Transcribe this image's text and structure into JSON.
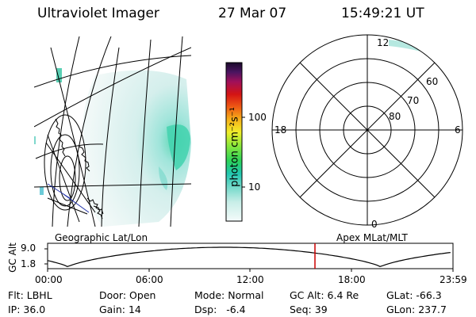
{
  "header": {
    "instrument": "Ultraviolet Imager",
    "date": "27 Mar 07",
    "time": "15:49:21 UT"
  },
  "colorbar": {
    "unit_label": "photon cm⁻²s⁻¹",
    "ticks": [
      "100",
      "10"
    ]
  },
  "geo_panel": {
    "label": "Geographic Lat/Lon"
  },
  "polar_panel": {
    "label": "Apex MLat/MLT",
    "mlt_labels": {
      "top": "12",
      "left": "18",
      "right": "6",
      "bottom": "0"
    },
    "lat_labels": [
      "60",
      "70",
      "80"
    ]
  },
  "timeline": {
    "ylabel": "GC Alt",
    "y_ticks": [
      "9.0",
      "1.8"
    ],
    "x_ticks": [
      "00:00",
      "06:00",
      "12:00",
      "18:00",
      "23:59"
    ],
    "marker_time": "15:49"
  },
  "status": {
    "flt": {
      "label": "Flt:",
      "value": "LBHL"
    },
    "ip": {
      "label": "IP:",
      "value": "36.0"
    },
    "door": {
      "label": "Door:",
      "value": "Open"
    },
    "gain": {
      "label": "Gain:",
      "value": "14"
    },
    "mode": {
      "label": "Mode:",
      "value": "Normal"
    },
    "dsp": {
      "label": "Dsp:",
      "value": "-6.4"
    },
    "gcalt": {
      "label": "GC Alt:",
      "value": "6.4 Re"
    },
    "seq": {
      "label": "Seq:",
      "value": "39"
    },
    "glat": {
      "label": "GLat:",
      "value": "-66.3"
    },
    "glon": {
      "label": "GLon:",
      "value": "237.7"
    }
  },
  "colors": {
    "marker": "#cc0000",
    "aurora_pale": "#dff0ee",
    "aurora_mid": "#a8e4dc",
    "aurora_bright": "#3ccfa6"
  }
}
